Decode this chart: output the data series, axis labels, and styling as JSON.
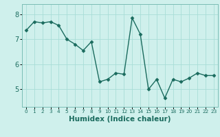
{
  "x": [
    0,
    1,
    2,
    3,
    4,
    5,
    6,
    7,
    8,
    9,
    10,
    11,
    12,
    13,
    14,
    15,
    16,
    17,
    18,
    19,
    20,
    21,
    22,
    23
  ],
  "y": [
    7.35,
    7.7,
    7.65,
    7.7,
    7.55,
    7.0,
    6.8,
    6.55,
    6.9,
    5.3,
    5.4,
    5.65,
    5.6,
    7.85,
    7.2,
    5.0,
    5.4,
    4.65,
    5.4,
    5.3,
    5.45,
    5.65,
    5.55,
    5.55
  ],
  "line_color": "#1a6b5e",
  "marker": "D",
  "marker_size": 2.5,
  "line_width": 1.0,
  "bg_color": "#cff0ec",
  "grid_color": "#a8ddd7",
  "xlabel": "Humidex (Indice chaleur)",
  "xlabel_fontsize": 7.5,
  "tick_fontsize": 7,
  "ytick_fontsize": 7,
  "yticks": [
    5,
    6,
    7,
    8
  ],
  "ylim": [
    4.3,
    8.4
  ],
  "xlim": [
    -0.5,
    23.5
  ],
  "xticks": [
    0,
    1,
    2,
    3,
    4,
    5,
    6,
    7,
    8,
    9,
    10,
    11,
    12,
    13,
    14,
    15,
    16,
    17,
    18,
    19,
    20,
    21,
    22,
    23
  ]
}
